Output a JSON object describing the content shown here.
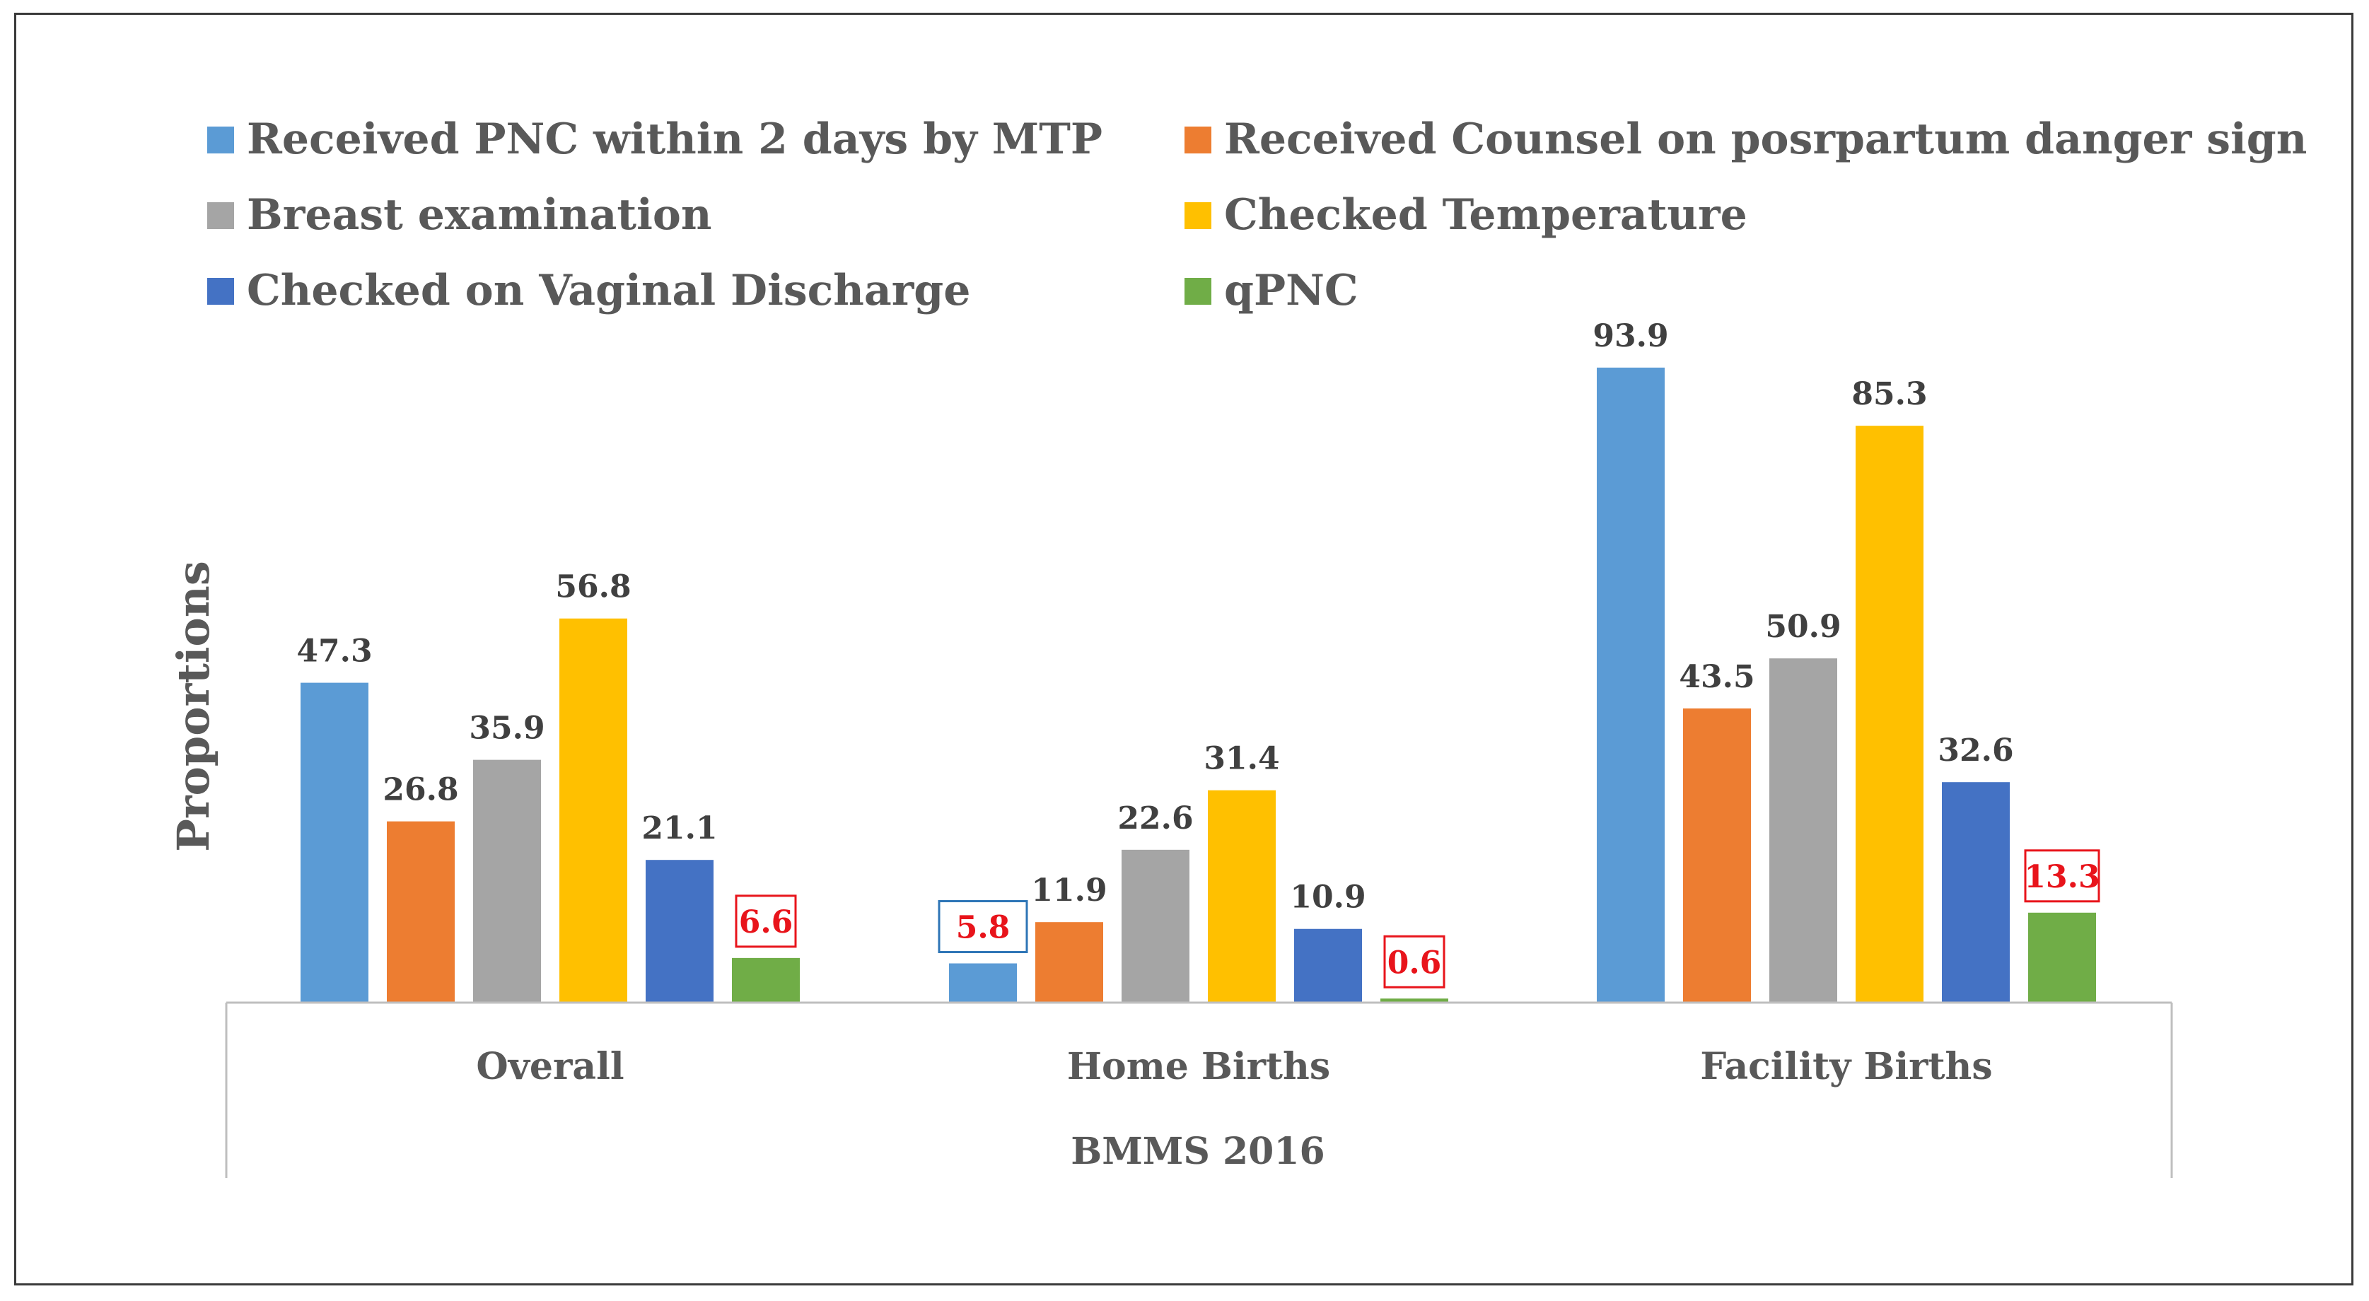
{
  "chart_data": {
    "type": "bar",
    "title": "",
    "ylabel": "Proportions",
    "xlabel": "BMMS 2016",
    "ylim": [
      0,
      100
    ],
    "grid": false,
    "legend_position": "top",
    "categories": [
      "Overall",
      "Home Births",
      "Facility Births"
    ],
    "series": [
      {
        "name": "Received PNC within 2 days by MTP",
        "color": "#5b9bd5",
        "values": [
          47.3,
          5.8,
          93.9
        ]
      },
      {
        "name": "Received Counsel on posrpartum danger sign",
        "color": "#ed7d31",
        "values": [
          26.8,
          11.9,
          43.5
        ]
      },
      {
        "name": "Breast examination",
        "color": "#a5a5a5",
        "values": [
          35.9,
          22.6,
          50.9
        ]
      },
      {
        "name": "Checked Temperature",
        "color": "#ffc000",
        "values": [
          56.8,
          31.4,
          85.3
        ]
      },
      {
        "name": "Checked on Vaginal Discharge",
        "color": "#4472c4",
        "values": [
          21.1,
          10.9,
          32.6
        ]
      },
      {
        "name": "qPNC",
        "color": "#70ad47",
        "values": [
          6.6,
          0.6,
          13.3
        ]
      }
    ],
    "value_labels": [
      [
        "47.3",
        "5.8",
        "93.9"
      ],
      [
        "26.8",
        "11.9",
        "43.5"
      ],
      [
        "35.9",
        "22.6",
        "50.9"
      ],
      [
        "56.8",
        "31.4",
        "85.3"
      ],
      [
        "21.1",
        "10.9",
        "32.6"
      ],
      [
        "6.6",
        "0.6",
        "13.3"
      ]
    ],
    "highlighted_labels": [
      {
        "series": 5,
        "category": 0,
        "box_color": "#e8141b",
        "text_color": "#e8141b"
      },
      {
        "series": 5,
        "category": 1,
        "box_color": "#e8141b",
        "text_color": "#e8141b"
      },
      {
        "series": 5,
        "category": 2,
        "box_color": "#e8141b",
        "text_color": "#e8141b"
      },
      {
        "series": 0,
        "category": 1,
        "box_color": "#2e75b6",
        "text_color": "#e8141b"
      }
    ]
  }
}
